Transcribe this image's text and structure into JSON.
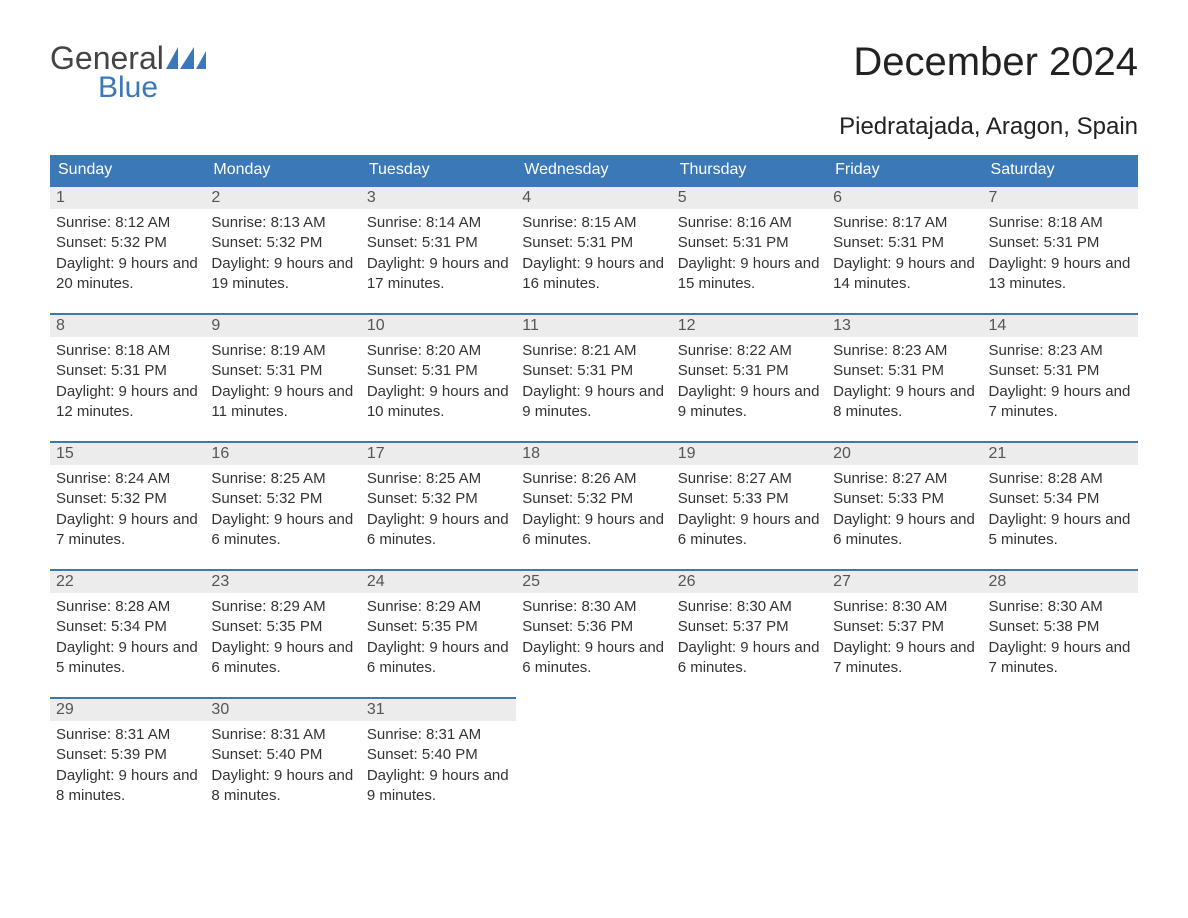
{
  "logo": {
    "text1": "General",
    "text2": "Blue",
    "flag_color": "#3b78b8"
  },
  "title": "December 2024",
  "location": "Piedratajada, Aragon, Spain",
  "colors": {
    "header_bg": "#3b78b8",
    "header_text": "#ffffff",
    "daynum_bg": "#ececec",
    "border_top": "#3b78b8",
    "body_text": "#333333",
    "page_bg": "#ffffff"
  },
  "day_headers": [
    "Sunday",
    "Monday",
    "Tuesday",
    "Wednesday",
    "Thursday",
    "Friday",
    "Saturday"
  ],
  "weeks": [
    [
      {
        "n": "1",
        "sr": "8:12 AM",
        "ss": "5:32 PM",
        "dl": "9 hours and 20 minutes."
      },
      {
        "n": "2",
        "sr": "8:13 AM",
        "ss": "5:32 PM",
        "dl": "9 hours and 19 minutes."
      },
      {
        "n": "3",
        "sr": "8:14 AM",
        "ss": "5:31 PM",
        "dl": "9 hours and 17 minutes."
      },
      {
        "n": "4",
        "sr": "8:15 AM",
        "ss": "5:31 PM",
        "dl": "9 hours and 16 minutes."
      },
      {
        "n": "5",
        "sr": "8:16 AM",
        "ss": "5:31 PM",
        "dl": "9 hours and 15 minutes."
      },
      {
        "n": "6",
        "sr": "8:17 AM",
        "ss": "5:31 PM",
        "dl": "9 hours and 14 minutes."
      },
      {
        "n": "7",
        "sr": "8:18 AM",
        "ss": "5:31 PM",
        "dl": "9 hours and 13 minutes."
      }
    ],
    [
      {
        "n": "8",
        "sr": "8:18 AM",
        "ss": "5:31 PM",
        "dl": "9 hours and 12 minutes."
      },
      {
        "n": "9",
        "sr": "8:19 AM",
        "ss": "5:31 PM",
        "dl": "9 hours and 11 minutes."
      },
      {
        "n": "10",
        "sr": "8:20 AM",
        "ss": "5:31 PM",
        "dl": "9 hours and 10 minutes."
      },
      {
        "n": "11",
        "sr": "8:21 AM",
        "ss": "5:31 PM",
        "dl": "9 hours and 9 minutes."
      },
      {
        "n": "12",
        "sr": "8:22 AM",
        "ss": "5:31 PM",
        "dl": "9 hours and 9 minutes."
      },
      {
        "n": "13",
        "sr": "8:23 AM",
        "ss": "5:31 PM",
        "dl": "9 hours and 8 minutes."
      },
      {
        "n": "14",
        "sr": "8:23 AM",
        "ss": "5:31 PM",
        "dl": "9 hours and 7 minutes."
      }
    ],
    [
      {
        "n": "15",
        "sr": "8:24 AM",
        "ss": "5:32 PM",
        "dl": "9 hours and 7 minutes."
      },
      {
        "n": "16",
        "sr": "8:25 AM",
        "ss": "5:32 PM",
        "dl": "9 hours and 6 minutes."
      },
      {
        "n": "17",
        "sr": "8:25 AM",
        "ss": "5:32 PM",
        "dl": "9 hours and 6 minutes."
      },
      {
        "n": "18",
        "sr": "8:26 AM",
        "ss": "5:32 PM",
        "dl": "9 hours and 6 minutes."
      },
      {
        "n": "19",
        "sr": "8:27 AM",
        "ss": "5:33 PM",
        "dl": "9 hours and 6 minutes."
      },
      {
        "n": "20",
        "sr": "8:27 AM",
        "ss": "5:33 PM",
        "dl": "9 hours and 6 minutes."
      },
      {
        "n": "21",
        "sr": "8:28 AM",
        "ss": "5:34 PM",
        "dl": "9 hours and 5 minutes."
      }
    ],
    [
      {
        "n": "22",
        "sr": "8:28 AM",
        "ss": "5:34 PM",
        "dl": "9 hours and 5 minutes."
      },
      {
        "n": "23",
        "sr": "8:29 AM",
        "ss": "5:35 PM",
        "dl": "9 hours and 6 minutes."
      },
      {
        "n": "24",
        "sr": "8:29 AM",
        "ss": "5:35 PM",
        "dl": "9 hours and 6 minutes."
      },
      {
        "n": "25",
        "sr": "8:30 AM",
        "ss": "5:36 PM",
        "dl": "9 hours and 6 minutes."
      },
      {
        "n": "26",
        "sr": "8:30 AM",
        "ss": "5:37 PM",
        "dl": "9 hours and 6 minutes."
      },
      {
        "n": "27",
        "sr": "8:30 AM",
        "ss": "5:37 PM",
        "dl": "9 hours and 7 minutes."
      },
      {
        "n": "28",
        "sr": "8:30 AM",
        "ss": "5:38 PM",
        "dl": "9 hours and 7 minutes."
      }
    ],
    [
      {
        "n": "29",
        "sr": "8:31 AM",
        "ss": "5:39 PM",
        "dl": "9 hours and 8 minutes."
      },
      {
        "n": "30",
        "sr": "8:31 AM",
        "ss": "5:40 PM",
        "dl": "9 hours and 8 minutes."
      },
      {
        "n": "31",
        "sr": "8:31 AM",
        "ss": "5:40 PM",
        "dl": "9 hours and 9 minutes."
      },
      null,
      null,
      null,
      null
    ]
  ],
  "labels": {
    "sunrise": "Sunrise: ",
    "sunset": "Sunset: ",
    "daylight": "Daylight: "
  }
}
